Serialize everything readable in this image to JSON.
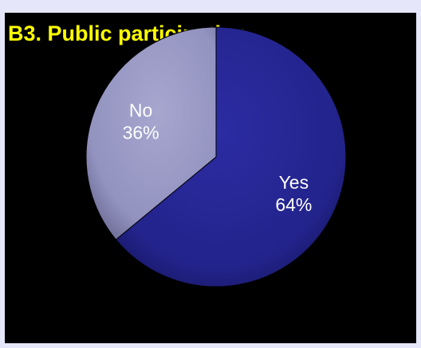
{
  "chart_data": {
    "type": "pie",
    "title": "B3. Public participation",
    "categories": [
      "Yes",
      "No"
    ],
    "values": [
      64,
      36
    ],
    "labels": [
      {
        "category": "Yes",
        "percent": "64%"
      },
      {
        "category": "No",
        "percent": "36%"
      }
    ],
    "colors": {
      "Yes": "#23238c",
      "No": "#9b9bc6",
      "background": "#000000",
      "title": "#ffff00",
      "frame": "#e6e6fa"
    },
    "legend": "none"
  }
}
